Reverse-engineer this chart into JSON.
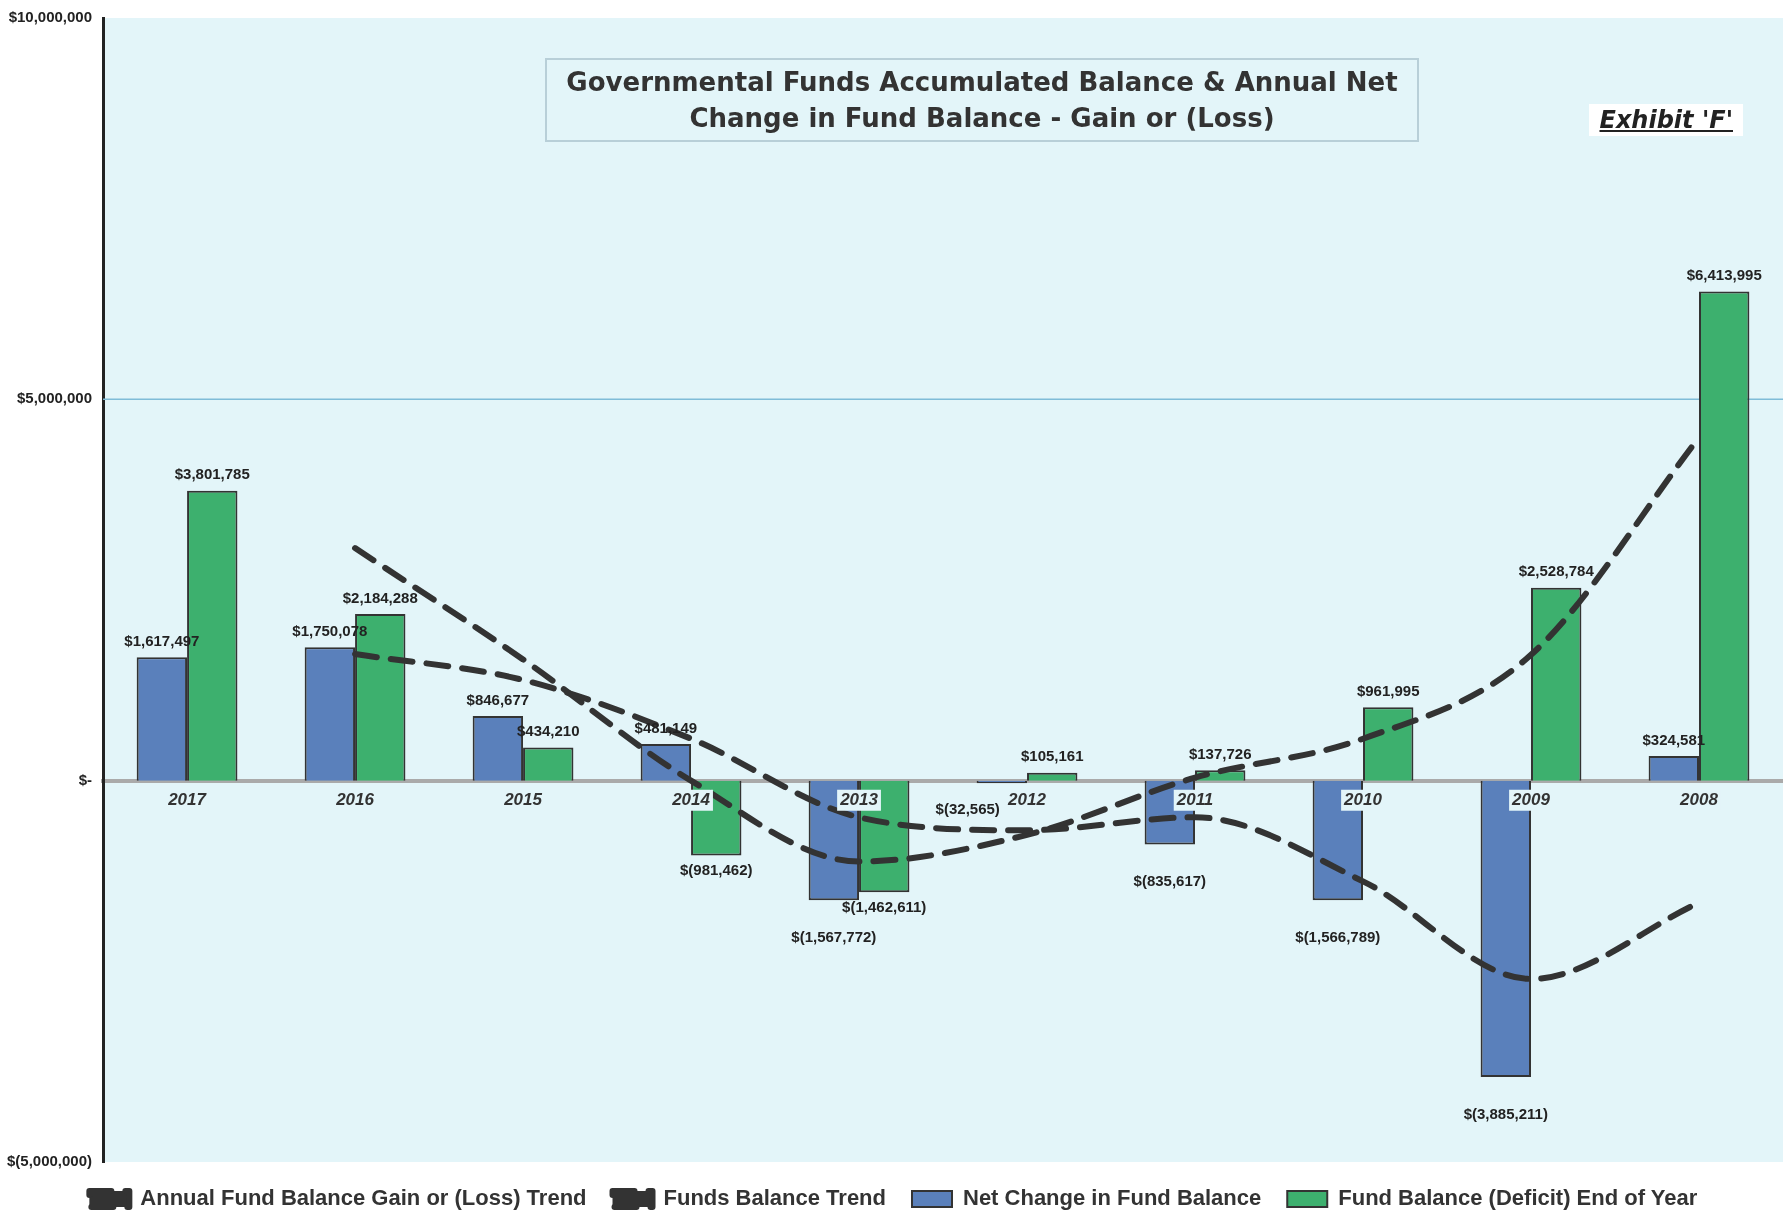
{
  "chart_data": {
    "type": "bar",
    "title": "Governmental Funds Accumulated Balance & Annual Net Change in Fund Balance - Gain or (Loss)",
    "annotations": [
      "Exhibit 'F'"
    ],
    "categories": [
      "2017",
      "2016",
      "2015",
      "2014",
      "2013",
      "2012",
      "2011",
      "2010",
      "2009",
      "2008"
    ],
    "series": [
      {
        "name": "Net Change in Fund Balance",
        "color": "#5a80bb",
        "values": [
          1617497,
          1750078,
          846677,
          481149,
          -1567772,
          -32565,
          -835617,
          -1566789,
          -3885211,
          324581
        ],
        "value_labels": [
          "$1,617,497",
          "$1,750,078",
          "$846,677",
          "$481,149",
          "$(1,567,772)",
          "$(32,565)",
          "$(835,617)",
          "$(1,566,789)",
          "$(3,885,211)",
          "$324,581"
        ]
      },
      {
        "name": "Fund Balance (Deficit) End of Year",
        "color": "#3db06e",
        "values": [
          3801785,
          2184288,
          434210,
          -981462,
          -1462611,
          105161,
          137726,
          961995,
          2528784,
          6413995
        ],
        "value_labels": [
          "$3,801,785",
          "$2,184,288",
          "$434,210",
          "$(981,462)",
          "$(1,462,611)",
          "$105,161",
          "$137,726",
          "$961,995",
          "$2,528,784",
          "$6,413,995"
        ]
      },
      {
        "name": "Annual Fund Balance Gain or (Loss) Trend",
        "type": "line",
        "color": "#333333",
        "line_style": "dashed",
        "values": [
          null,
          1660000,
          1320000,
          550000,
          -480000,
          -650000,
          -480000,
          -1320000,
          -2600000,
          -1600000
        ]
      },
      {
        "name": "Funds Balance Trend",
        "type": "line",
        "color": "#333333",
        "line_style": "dashed",
        "values": [
          null,
          3050000,
          1590000,
          0,
          -1060000,
          -710000,
          40000,
          550000,
          1650000,
          4500000
        ]
      }
    ],
    "ylim": [
      -5000000,
      10000000
    ],
    "yticks": [
      {
        "value": -5000000,
        "label": "$(5,000,000)"
      },
      {
        "value": 0,
        "label": "$-"
      },
      {
        "value": 5000000,
        "label": "$5,000,000"
      },
      {
        "value": 10000000,
        "label": "$10,000,000"
      }
    ],
    "ref_lines": [
      {
        "axis": "y",
        "value": 5000000,
        "color": "#7fbcd8"
      }
    ],
    "legend": "bottom",
    "marker": "none"
  }
}
